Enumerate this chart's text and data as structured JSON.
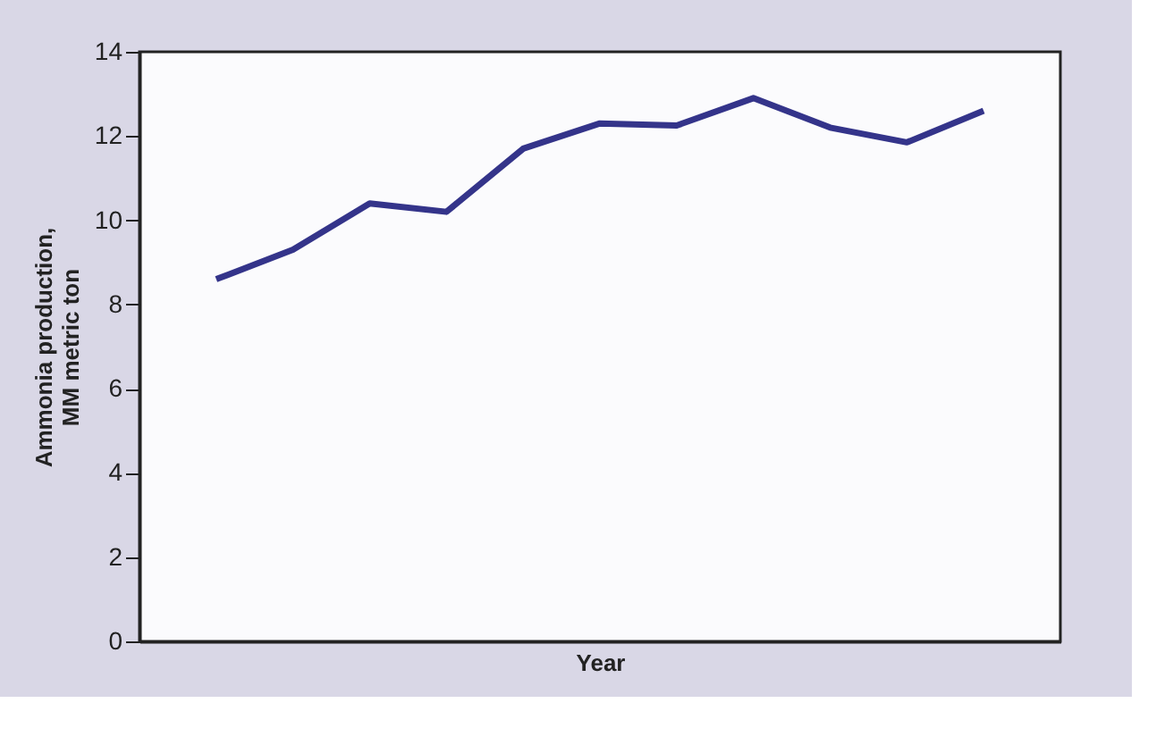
{
  "chart_data": {
    "type": "line",
    "xlabel": "Year",
    "ylabel": "Ammonia production, MM metric ton",
    "categories": [
      null,
      null,
      null,
      null,
      null,
      null,
      null,
      null,
      null,
      null,
      null
    ],
    "series": [
      {
        "color": "#34348a",
        "values": [
          8.6,
          9.3,
          10.4,
          10.2,
          11.7,
          12.3,
          12.25,
          12.9,
          12.2,
          11.85,
          12.6
        ]
      }
    ],
    "ylim": [
      0,
      14
    ],
    "yticks": [
      0,
      2,
      4,
      6,
      8,
      10,
      12,
      14
    ],
    "grid": false,
    "tick_labels": "y",
    "marker": "none",
    "line_style": "solid"
  }
}
